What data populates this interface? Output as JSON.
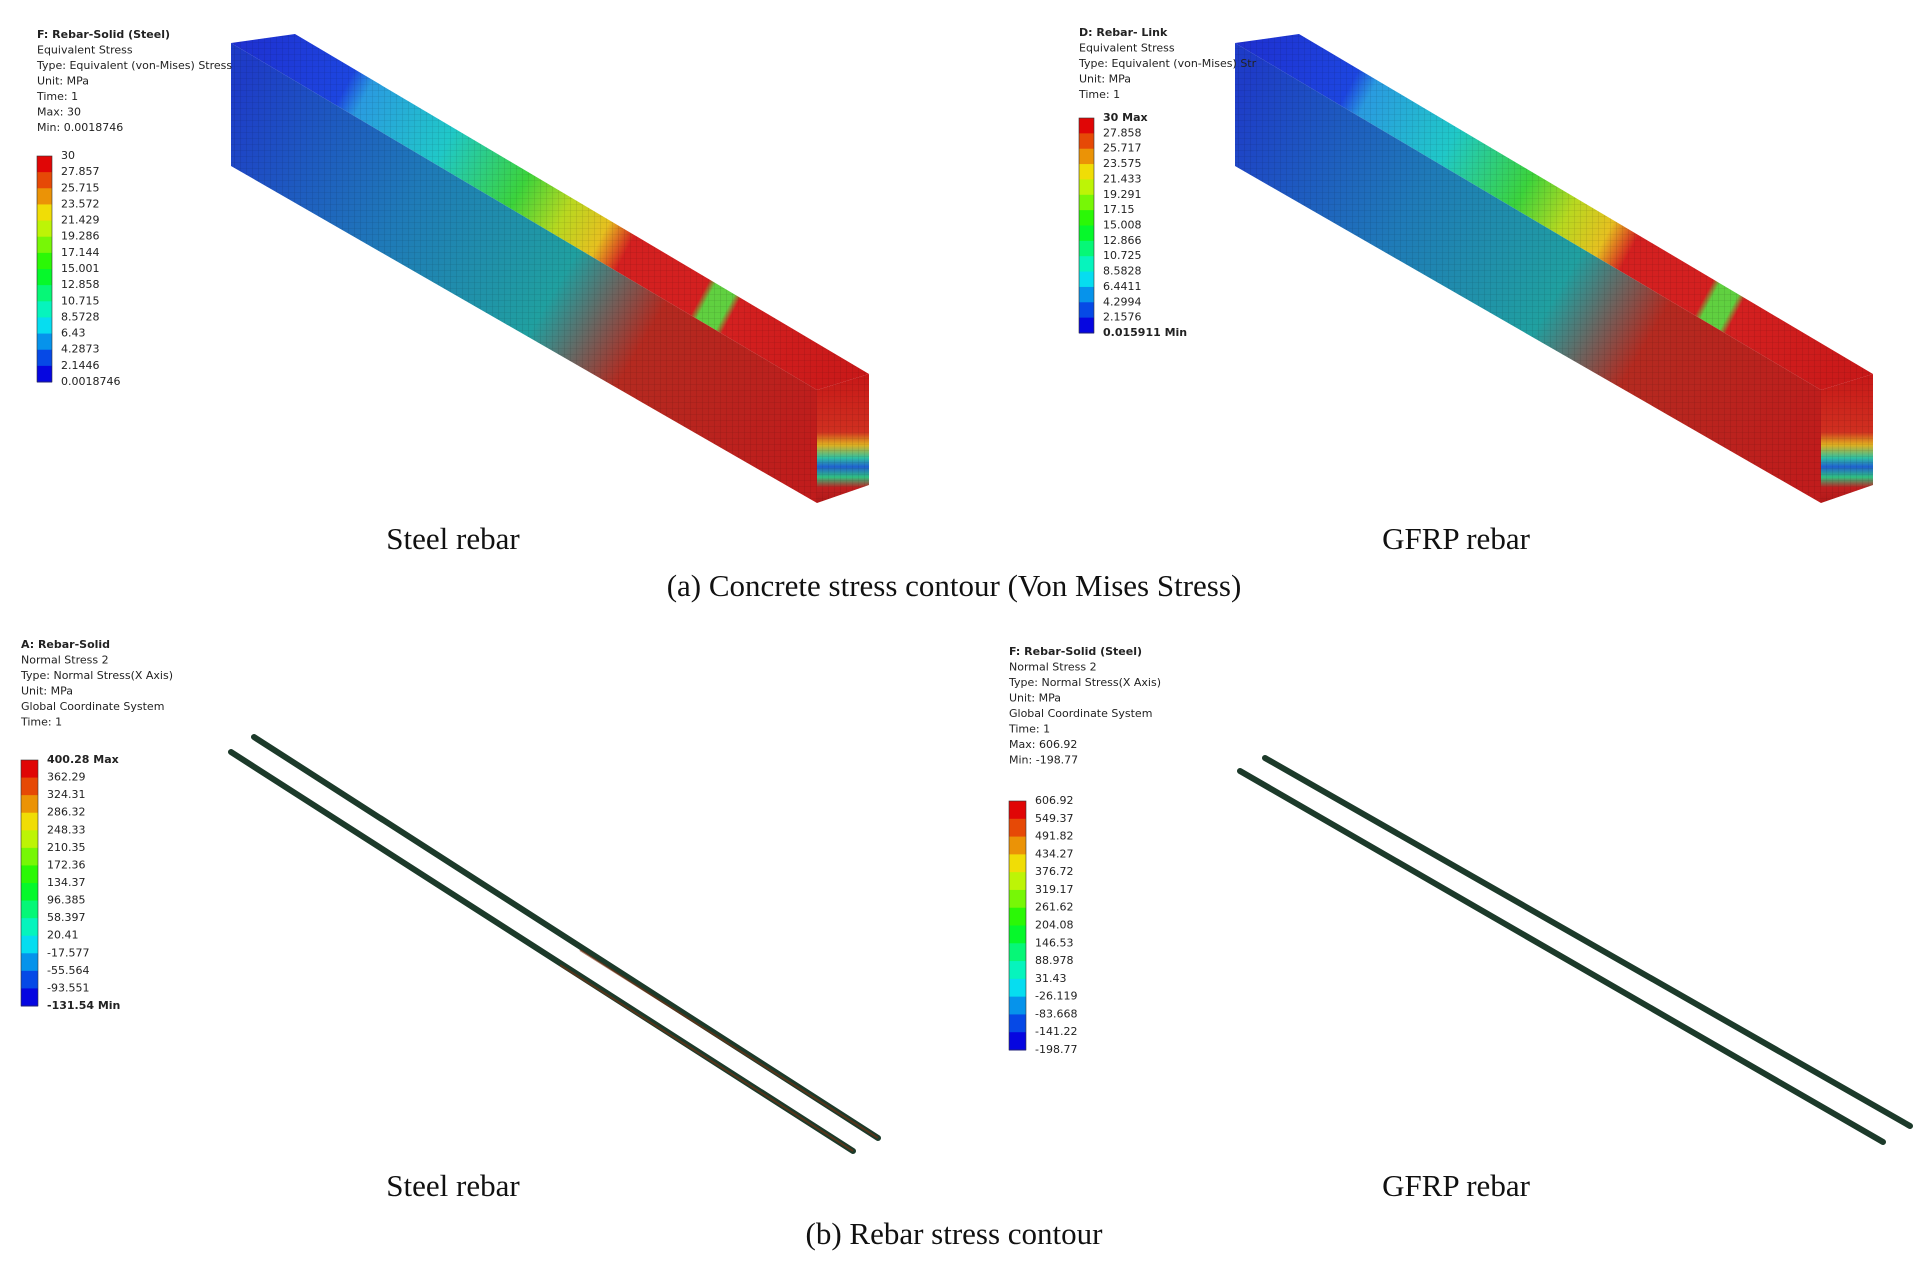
{
  "panels": [
    {
      "header": [
        "F: Rebar-Solid (Steel)",
        "Equivalent Stress",
        "Type: Equivalent (von-Mises) Stress",
        "Unit: MPa",
        "Time: 1",
        "Max: 30",
        "Min: 0.0018746"
      ],
      "legend": [
        "30",
        "27.857",
        "25.715",
        "23.572",
        "21.429",
        "19.286",
        "17.144",
        "15.001",
        "12.858",
        "10.715",
        "8.5728",
        "6.43",
        "4.2873",
        "2.1446",
        "0.0018746"
      ],
      "caption": "Steel rebar"
    },
    {
      "header": [
        "D: Rebar- Link",
        "Equivalent Stress",
        "Type: Equivalent (von-Mises) Str",
        "Unit: MPa",
        "Time: 1"
      ],
      "legend": [
        "30 Max",
        "27.858",
        "25.717",
        "23.575",
        "21.433",
        "19.291",
        "17.15",
        "15.008",
        "12.866",
        "10.725",
        "8.5828",
        "6.4411",
        "4.2994",
        "2.1576",
        "0.015911 Min"
      ],
      "caption": "GFRP rebar"
    },
    {
      "header": [
        "A: Rebar-Solid",
        "Normal Stress 2",
        "Type: Normal Stress(X Axis)",
        "Unit: MPa",
        "Global Coordinate System",
        "Time: 1"
      ],
      "legend": [
        "400.28 Max",
        "362.29",
        "324.31",
        "286.32",
        "248.33",
        "210.35",
        "172.36",
        "134.37",
        "96.385",
        "58.397",
        "20.41",
        "-17.577",
        "-55.564",
        "-93.551",
        "-131.54 Min"
      ],
      "caption": "Steel rebar"
    },
    {
      "header": [
        "F: Rebar-Solid (Steel)",
        "Normal Stress 2",
        "Type: Normal Stress(X Axis)",
        "Unit: MPa",
        "Global Coordinate System",
        "Time: 1",
        "Max: 606.92",
        "Min: -198.77"
      ],
      "legend": [
        "606.92",
        "549.37",
        "491.82",
        "434.27",
        "376.72",
        "319.17",
        "261.62",
        "204.08",
        "146.53",
        "88.978",
        "31.43",
        "-26.119",
        "-83.668",
        "-141.22",
        "-198.77"
      ],
      "caption": "GFRP rebar"
    }
  ],
  "captions": {
    "a": "(a) Concrete stress contour (Von Mises Stress)",
    "b": "(b) Rebar stress contour"
  }
}
